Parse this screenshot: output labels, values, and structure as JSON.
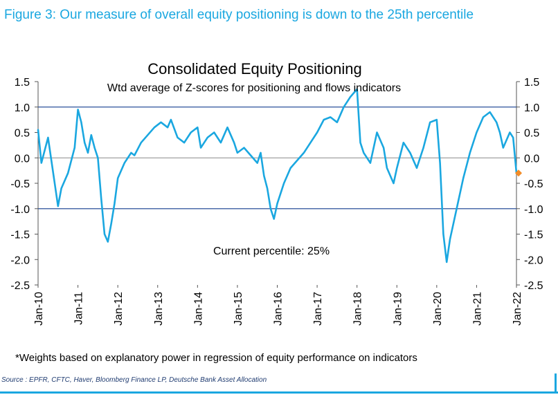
{
  "figure_title": "Figure 3: Our measure of overall equity positioning is down to the 25th percentile",
  "footnote": "*Weights based on explanatory power in regression of equity performance on indicators",
  "source": "Source : EPFR, CFTC, Haver, Bloomberg Finance LP, Deutsche Bank Asset Allocation",
  "colors": {
    "title": "#1aa7e0",
    "series": "#1aa7e0",
    "reference_lines": "#2a4f9a",
    "current_marker": "#f28c28",
    "zero_line": "#888888"
  },
  "chart_data": {
    "type": "line",
    "title": "Consolidated Equity Positioning",
    "subtitle": "Wtd average of Z-scores for positioning and flows indicators",
    "annotation": "Current percentile: 25%",
    "xlabel": "",
    "ylabel": "",
    "ylim": [
      -2.5,
      1.5
    ],
    "yticks": [
      1.5,
      1.0,
      0.5,
      0.0,
      -0.5,
      -1.0,
      -1.5,
      -2.0,
      -2.5
    ],
    "ytick_labels": [
      "1.5",
      "1.0",
      "0.5",
      "0.0",
      "-0.5",
      "-1.0",
      "-1.5",
      "-2.0",
      "-2.5"
    ],
    "xlim": [
      "2010-01",
      "2022-01"
    ],
    "xtick_labels": [
      "Jan-10",
      "Jan-11",
      "Jan-12",
      "Jan-13",
      "Jan-14",
      "Jan-15",
      "Jan-16",
      "Jan-17",
      "Jan-18",
      "Jan-19",
      "Jan-20",
      "Jan-21",
      "Jan-22"
    ],
    "reference_lines": [
      1.0,
      -1.0
    ],
    "grid": false,
    "legend": "none",
    "axes": "left and right",
    "series": [
      {
        "x": [
          "2010-01",
          "2010-02",
          "2010-04",
          "2010-06",
          "2010-07",
          "2010-08",
          "2010-10",
          "2010-12",
          "2011-01",
          "2011-02",
          "2011-03",
          "2011-04",
          "2011-05",
          "2011-06",
          "2011-07",
          "2011-08",
          "2011-09",
          "2011-10",
          "2011-11",
          "2011-12",
          "2012-01",
          "2012-03",
          "2012-05",
          "2012-06",
          "2012-08",
          "2012-10",
          "2012-12",
          "2013-02",
          "2013-04",
          "2013-05",
          "2013-07",
          "2013-09",
          "2013-11",
          "2014-01",
          "2014-02",
          "2014-04",
          "2014-06",
          "2014-08",
          "2014-10",
          "2014-12",
          "2015-01",
          "2015-03",
          "2015-05",
          "2015-07",
          "2015-08",
          "2015-09",
          "2015-10",
          "2015-11",
          "2015-12",
          "2016-01",
          "2016-02",
          "2016-03",
          "2016-05",
          "2016-07",
          "2016-09",
          "2016-11",
          "2017-01",
          "2017-03",
          "2017-05",
          "2017-07",
          "2017-09",
          "2017-11",
          "2018-01",
          "2018-02",
          "2018-03",
          "2018-05",
          "2018-07",
          "2018-09",
          "2018-10",
          "2018-12",
          "2019-01",
          "2019-03",
          "2019-05",
          "2019-07",
          "2019-09",
          "2019-11",
          "2020-01",
          "2020-02",
          "2020-03",
          "2020-04",
          "2020-05",
          "2020-07",
          "2020-09",
          "2020-11",
          "2021-01",
          "2021-03",
          "2021-05",
          "2021-07",
          "2021-08",
          "2021-09",
          "2021-11",
          "2021-12",
          "2022-01"
        ],
        "values": [
          0.55,
          -0.1,
          0.4,
          -0.5,
          -0.95,
          -0.6,
          -0.3,
          0.2,
          0.95,
          0.7,
          0.3,
          0.1,
          0.45,
          0.2,
          0.0,
          -0.8,
          -1.5,
          -1.65,
          -1.3,
          -0.9,
          -0.4,
          -0.1,
          0.1,
          0.05,
          0.3,
          0.45,
          0.6,
          0.7,
          0.6,
          0.75,
          0.4,
          0.3,
          0.5,
          0.6,
          0.2,
          0.4,
          0.5,
          0.3,
          0.6,
          0.3,
          0.1,
          0.2,
          0.05,
          -0.1,
          0.1,
          -0.35,
          -0.6,
          -1.0,
          -1.2,
          -0.9,
          -0.7,
          -0.5,
          -0.2,
          -0.05,
          0.1,
          0.3,
          0.5,
          0.75,
          0.8,
          0.7,
          1.0,
          1.2,
          1.35,
          0.3,
          0.1,
          -0.1,
          0.5,
          0.2,
          -0.2,
          -0.5,
          -0.2,
          0.3,
          0.1,
          -0.2,
          0.2,
          0.7,
          0.75,
          -0.1,
          -1.5,
          -2.05,
          -1.6,
          -1.0,
          -0.4,
          0.1,
          0.5,
          0.8,
          0.9,
          0.7,
          0.5,
          0.2,
          0.5,
          0.4,
          -0.3
        ]
      }
    ],
    "current_point": {
      "x": "2022-01",
      "y": -0.3
    }
  }
}
